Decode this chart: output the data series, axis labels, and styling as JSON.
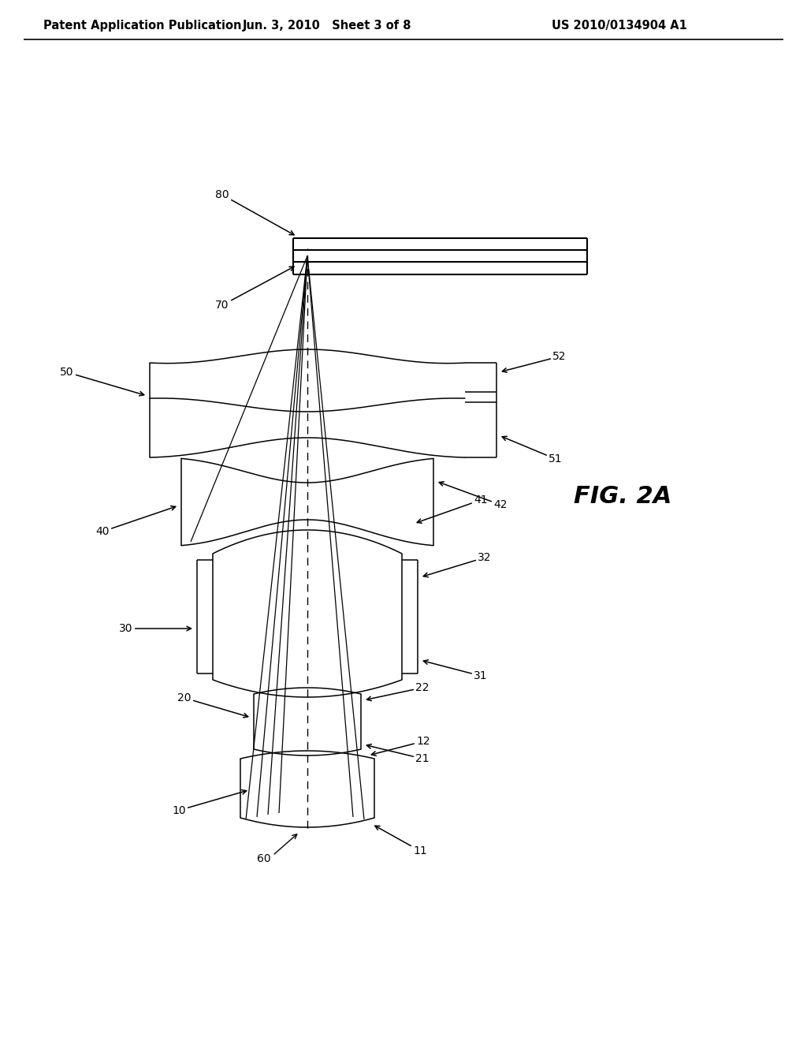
{
  "bg_color": "#ffffff",
  "line_color": "#000000",
  "lw_main": 1.5,
  "lw_thin": 1.1,
  "lw_ray": 0.9,
  "header_left": "Patent Application Publication",
  "header_mid": "Jun. 3, 2010   Sheet 3 of 8",
  "header_right": "US 2010/0134904 A1",
  "fig_label": "FIG. 2A",
  "header_fontsize": 10.5,
  "label_fontsize": 10,
  "fig_label_fontsize": 22
}
